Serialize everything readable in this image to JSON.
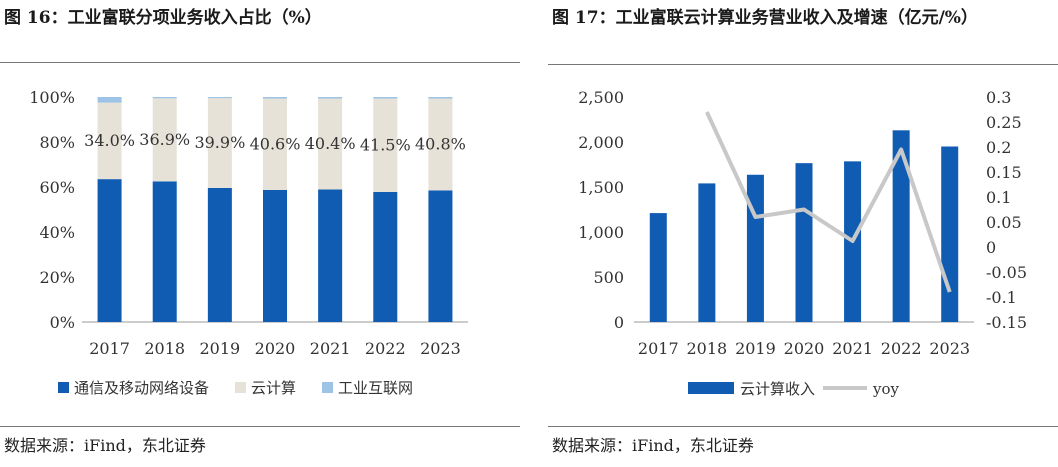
{
  "left_panel": {
    "title": "图 16：工业富联分项业务收入占比（%）",
    "source": "数据来源：iFind，东北证券"
  },
  "right_panel": {
    "title": "图 17：工业富联云计算业务营业收入及增速（亿元/%）",
    "source": "数据来源：iFind，东北证券"
  },
  "chart_data": [
    {
      "type": "bar",
      "stacked": true,
      "categories": [
        "2017",
        "2018",
        "2019",
        "2020",
        "2021",
        "2022",
        "2023"
      ],
      "series": [
        {
          "name": "通信及移动网络设备",
          "color": "#0f5cb2",
          "values": [
            63.5,
            62.5,
            59.6,
            58.7,
            58.9,
            57.8,
            58.5
          ]
        },
        {
          "name": "云计算",
          "color": "#e6e2d8",
          "values": [
            34.0,
            36.9,
            39.9,
            40.6,
            40.4,
            41.5,
            40.8
          ],
          "data_labels": [
            "34.0%",
            "36.9%",
            "39.9%",
            "40.6%",
            "40.4%",
            "41.5%",
            "40.8%"
          ]
        },
        {
          "name": "工业互联网",
          "color": "#9dc3e6",
          "values": [
            2.5,
            0.6,
            0.5,
            0.7,
            0.7,
            0.7,
            0.7
          ]
        }
      ],
      "y_ticks": [
        "0%",
        "20%",
        "40%",
        "60%",
        "80%",
        "100%"
      ],
      "ylim": [
        0,
        100
      ],
      "grid": false,
      "legend": "bottom"
    },
    {
      "type": "bar+line",
      "categories": [
        "2017",
        "2018",
        "2019",
        "2020",
        "2021",
        "2022",
        "2023"
      ],
      "series": [
        {
          "name": "云计算收入",
          "type": "bar",
          "axis": "left",
          "color": "#0f5cb2",
          "values": [
            1210,
            1540,
            1636,
            1765,
            1785,
            2130,
            1950
          ]
        },
        {
          "name": "yoy",
          "type": "line",
          "axis": "right",
          "color": "#c8c8c8",
          "values": [
            null,
            0.27,
            0.06,
            0.075,
            0.012,
            0.195,
            -0.09
          ]
        }
      ],
      "y_left_ticks": [
        "0",
        "500",
        "1,000",
        "1,500",
        "2,000",
        "2,500"
      ],
      "ylim_left": [
        0,
        2500
      ],
      "y_right_ticks": [
        "-0.15",
        "-0.1",
        "-0.05",
        "0",
        "0.05",
        "0.1",
        "0.15",
        "0.2",
        "0.25",
        "0.3"
      ],
      "ylim_right": [
        -0.15,
        0.3
      ],
      "grid": false,
      "legend": "bottom"
    }
  ]
}
